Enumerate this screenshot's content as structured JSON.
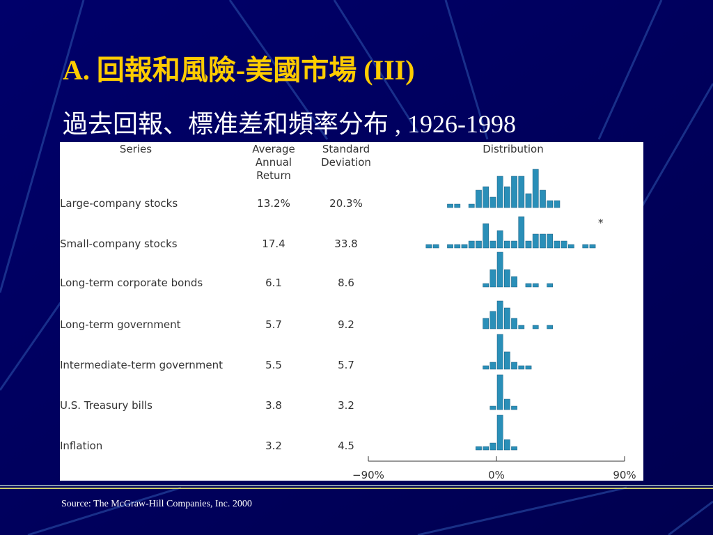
{
  "title": "A. 回報和風險-美國市場 (III)",
  "subtitle": "過去回報、標准差和頻率分布 , 1926-1998",
  "table": {
    "headers": [
      [
        "Series"
      ],
      [
        "Average",
        "Annual",
        "Return"
      ],
      [
        "Standard",
        "Deviation"
      ],
      [
        "Distribution"
      ]
    ],
    "rows": [
      [
        "Large-company stocks",
        "13.2%",
        "20.3%"
      ],
      [
        "Small-company stocks",
        "17.4",
        "33.8"
      ],
      [
        "Long-term corporate bonds",
        "6.1",
        "8.6"
      ],
      [
        "Long-term government",
        "5.7",
        "9.2"
      ],
      [
        "Intermediate-term government",
        "5.5",
        "5.7"
      ],
      [
        "U.S. Treasury bills",
        "3.8",
        "3.2"
      ],
      [
        "Inflation",
        "3.2",
        "4.5"
      ]
    ],
    "note": "*",
    "distribution": {
      "bins": [
        -90,
        -85,
        -80,
        -75,
        -70,
        -65,
        -60,
        -55,
        -50,
        -45,
        -40,
        -35,
        -30,
        -25,
        -20,
        -15,
        -10,
        -5,
        0,
        5,
        10,
        15,
        20,
        25,
        30,
        35,
        40,
        45,
        50,
        55,
        60,
        65,
        70,
        75,
        80,
        85,
        90
      ],
      "counts": [
        [
          0,
          0,
          0,
          0,
          0,
          0,
          0,
          0,
          0,
          0,
          0,
          1,
          1,
          0,
          1,
          5,
          6,
          3,
          9,
          6,
          9,
          9,
          4,
          11,
          5,
          2,
          2,
          0,
          0,
          0,
          0,
          0,
          0,
          0,
          0,
          0
        ],
        [
          0,
          0,
          0,
          0,
          0,
          0,
          0,
          0,
          1,
          1,
          0,
          1,
          1,
          1,
          2,
          2,
          7,
          2,
          5,
          2,
          2,
          9,
          2,
          4,
          4,
          4,
          2,
          2,
          1,
          0,
          1,
          1,
          0,
          0,
          0,
          0
        ],
        [
          0,
          0,
          0,
          0,
          0,
          0,
          0,
          0,
          0,
          0,
          0,
          0,
          0,
          0,
          0,
          0,
          1,
          5,
          10,
          5,
          3,
          0,
          1,
          1,
          0,
          1,
          0,
          0,
          0,
          0,
          0,
          0,
          0,
          0,
          0,
          0
        ],
        [
          0,
          0,
          0,
          0,
          0,
          0,
          0,
          0,
          0,
          0,
          0,
          0,
          0,
          0,
          0,
          0,
          3,
          5,
          8,
          6,
          3,
          1,
          0,
          1,
          0,
          1,
          0,
          0,
          0,
          0,
          0,
          0,
          0,
          0,
          0,
          0
        ],
        [
          0,
          0,
          0,
          0,
          0,
          0,
          0,
          0,
          0,
          0,
          0,
          0,
          0,
          0,
          0,
          0,
          1,
          2,
          10,
          5,
          2,
          1,
          1,
          0,
          0,
          0,
          0,
          0,
          0,
          0,
          0,
          0,
          0,
          0,
          0,
          0
        ],
        [
          0,
          0,
          0,
          0,
          0,
          0,
          0,
          0,
          0,
          0,
          0,
          0,
          0,
          0,
          0,
          0,
          0,
          1,
          10,
          3,
          1,
          0,
          0,
          0,
          0,
          0,
          0,
          0,
          0,
          0,
          0,
          0,
          0,
          0,
          0,
          0
        ],
        [
          0,
          0,
          0,
          0,
          0,
          0,
          0,
          0,
          0,
          0,
          0,
          0,
          0,
          0,
          0,
          1,
          1,
          2,
          10,
          3,
          1,
          0,
          0,
          0,
          0,
          0,
          0,
          0,
          0,
          0,
          0,
          0,
          0,
          0,
          0,
          0
        ]
      ],
      "ticks": [
        {
          "value": -90,
          "label": "−90%"
        },
        {
          "value": 0,
          "label": "0%"
        },
        {
          "value": 90,
          "label": "90%"
        }
      ]
    }
  },
  "source": "Source: The McGraw-Hill Companies, Inc. 2000"
}
